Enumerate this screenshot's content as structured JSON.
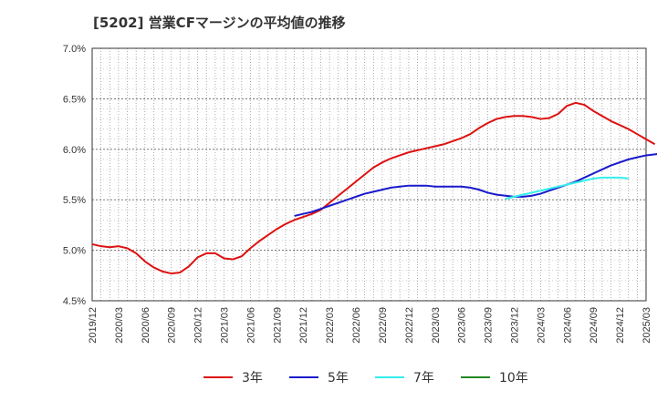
{
  "chart_data": {
    "type": "line",
    "title": "[5202]  営業CFマージンの平均値の推移",
    "xlabel": "",
    "ylabel": "",
    "ylim": [
      4.5,
      7.0
    ],
    "yticks": [
      "4.5%",
      "5.0%",
      "5.5%",
      "6.0%",
      "6.5%",
      "7.0%"
    ],
    "xticks": [
      "2019/12",
      "2020/03",
      "2020/06",
      "2020/09",
      "2020/12",
      "2021/03",
      "2021/06",
      "2021/09",
      "2021/12",
      "2022/03",
      "2022/06",
      "2022/09",
      "2022/12",
      "2023/03",
      "2023/06",
      "2023/09",
      "2023/12",
      "2024/03",
      "2024/06",
      "2024/09",
      "2024/12",
      "2025/03"
    ],
    "grid": true,
    "legend_position": "bottom",
    "series": [
      {
        "name": "3年",
        "color": "#dd1111",
        "start": "2019/12",
        "values": [
          5.06,
          5.04,
          5.03,
          5.04,
          5.02,
          4.97,
          4.89,
          4.83,
          4.79,
          4.77,
          4.78,
          4.84,
          4.93,
          4.97,
          4.97,
          4.92,
          4.91,
          4.94,
          5.02,
          5.09,
          5.15,
          5.21,
          5.26,
          5.3,
          5.33,
          5.36,
          5.4,
          5.47,
          5.54,
          5.61,
          5.68,
          5.75,
          5.82,
          5.87,
          5.91,
          5.94,
          5.97,
          5.99,
          6.01,
          6.03,
          6.05,
          6.08,
          6.11,
          6.15,
          6.21,
          6.26,
          6.3,
          6.32,
          6.33,
          6.33,
          6.32,
          6.3,
          6.31,
          6.35,
          6.43,
          6.46,
          6.44,
          6.38,
          6.33,
          6.28,
          6.24,
          6.2,
          6.15,
          6.1,
          6.05
        ]
      },
      {
        "name": "5年",
        "color": "#1a1acc",
        "start": "2021/11",
        "values": [
          5.34,
          5.36,
          5.38,
          5.41,
          5.44,
          5.47,
          5.5,
          5.53,
          5.56,
          5.58,
          5.6,
          5.62,
          5.63,
          5.64,
          5.64,
          5.64,
          5.63,
          5.63,
          5.63,
          5.63,
          5.62,
          5.6,
          5.57,
          5.55,
          5.54,
          5.53,
          5.53,
          5.54,
          5.56,
          5.59,
          5.62,
          5.65,
          5.68,
          5.72,
          5.76,
          5.8,
          5.84,
          5.87,
          5.9,
          5.92,
          5.94,
          5.95,
          5.96,
          5.96
        ]
      },
      {
        "name": "7年",
        "color": "#33eeee",
        "start": "2023/11",
        "values": [
          5.51,
          5.53,
          5.55,
          5.57,
          5.59,
          5.61,
          5.63,
          5.65,
          5.67,
          5.69,
          5.71,
          5.72,
          5.72,
          5.72,
          5.71
        ]
      },
      {
        "name": "10年",
        "color": "#228822",
        "start": "",
        "values": []
      }
    ]
  }
}
